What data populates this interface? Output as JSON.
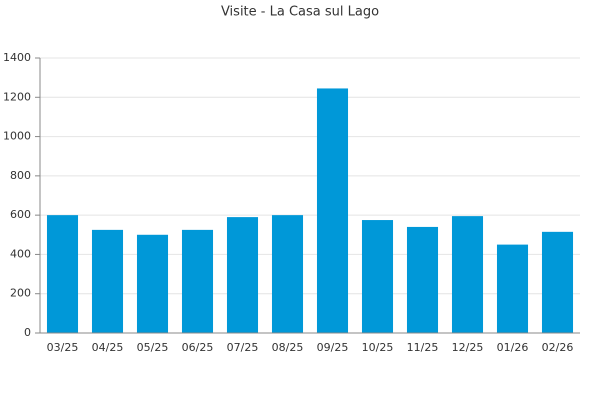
{
  "chart_data": {
    "type": "bar",
    "title": "Visite - La Casa sul Lago",
    "categories": [
      "03/25",
      "04/25",
      "05/25",
      "06/25",
      "07/25",
      "08/25",
      "09/25",
      "10/25",
      "11/25",
      "12/25",
      "01/26",
      "02/26"
    ],
    "values": [
      600,
      525,
      500,
      525,
      590,
      600,
      1245,
      575,
      540,
      595,
      450,
      515
    ],
    "color": "#0098d8",
    "ylim": [
      0,
      1400
    ],
    "yticks": [
      0,
      200,
      400,
      600,
      800,
      1000,
      1200,
      1400
    ],
    "grid": true
  }
}
